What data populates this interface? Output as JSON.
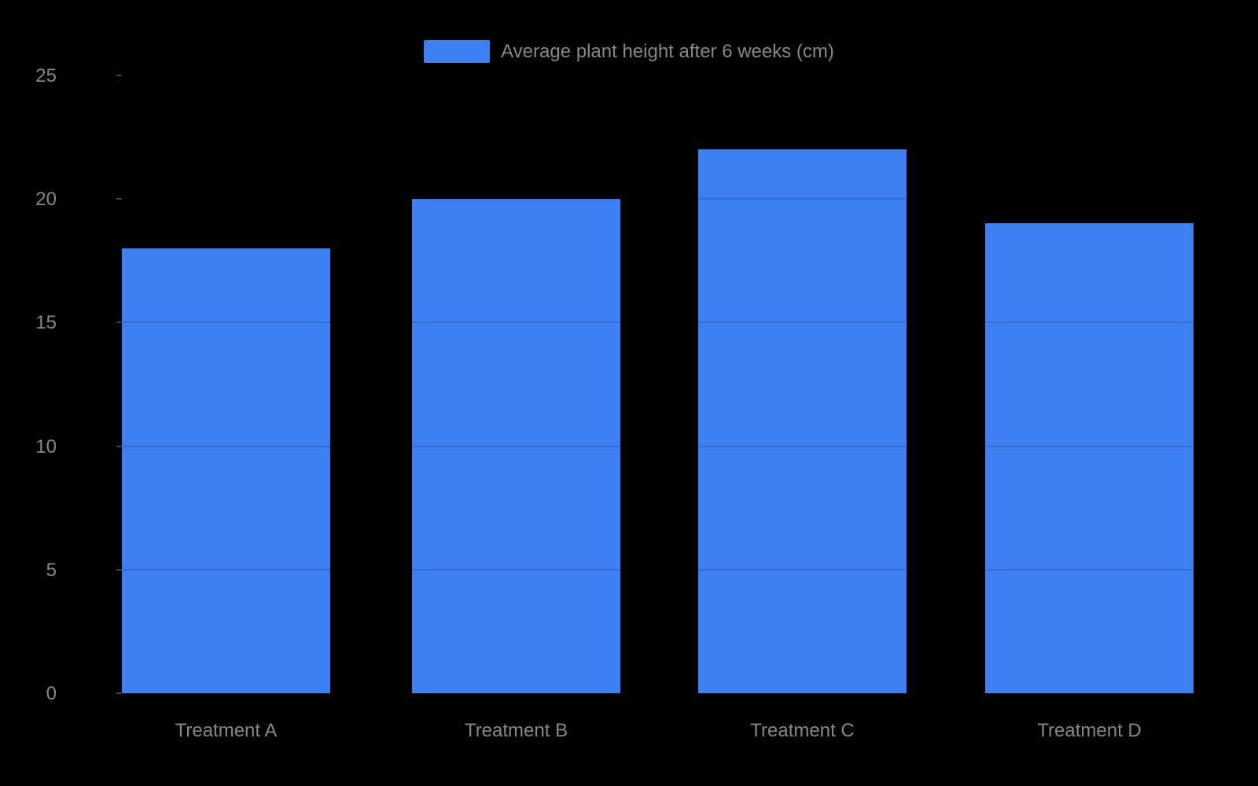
{
  "chart_data": {
    "type": "bar",
    "title": "",
    "legend": {
      "label": "Average plant height after 6 weeks (cm)",
      "position": "top-center"
    },
    "categories": [
      "Treatment A",
      "Treatment B",
      "Treatment C",
      "Treatment D"
    ],
    "values": [
      18,
      20,
      22,
      19
    ],
    "xlabel": "",
    "ylabel": "",
    "ylim": [
      0,
      25
    ],
    "yticks": [
      0,
      5,
      10,
      15,
      20,
      25
    ],
    "grid": true,
    "colors": {
      "bar": "#3E80F2",
      "background": "#000000",
      "label_text": "#878787",
      "gridline_overlay": "rgba(0,0,0,0.13)",
      "tick_mark": "#3F3F3F"
    }
  }
}
